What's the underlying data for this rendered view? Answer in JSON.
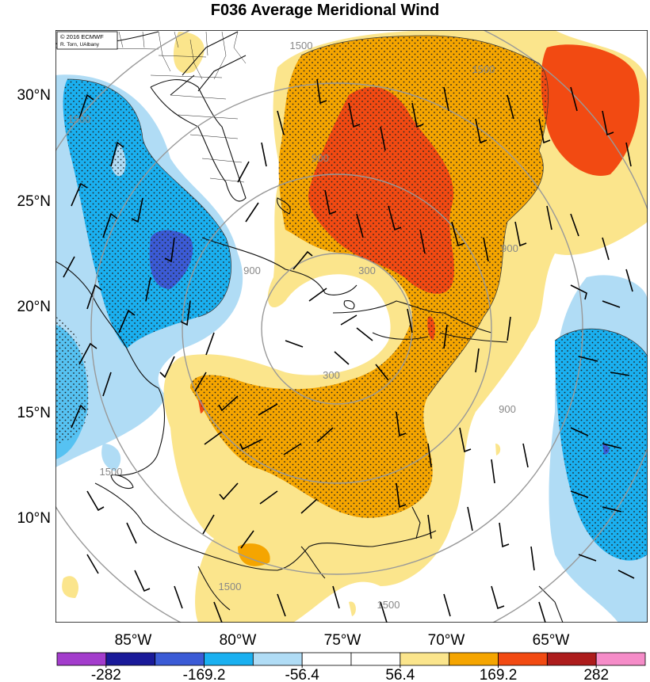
{
  "title": "F036 Average Meridional Wind",
  "credit": {
    "line1": "© 2016 ECMWF",
    "line2": "R. Torn, UAlbany"
  },
  "latitude_labels": [
    "30°N",
    "25°N",
    "20°N",
    "15°N",
    "10°N"
  ],
  "longitude_labels": [
    "85°W",
    "80°W",
    "75°W",
    "70°W",
    "65°W"
  ],
  "range_ring_labels": [
    "300",
    "300",
    "900",
    "900",
    "900",
    "900",
    "1500",
    "1500",
    "1500",
    "1500",
    "1500",
    "1500"
  ],
  "colorbar": {
    "labels": [
      "-282",
      "-169.2",
      "-56.4",
      "56.4",
      "169.2",
      "282"
    ],
    "colors": [
      "#a33ccc",
      "#1a1a99",
      "#3b5bd6",
      "#1ab0f0",
      "#b0dcf5",
      "#ffffff",
      "#ffffff",
      "#fbe58c",
      "#f5a500",
      "#f24a12",
      "#ad1c1c",
      "#f58cc8"
    ]
  },
  "colors": {
    "strong_positive": "#f24a12",
    "positive": "#f5a500",
    "weak_positive": "#fbe58c",
    "weak_negative": "#b0dcf5",
    "negative": "#1ab0f0",
    "strong_negative": "#3b5bd6"
  }
}
